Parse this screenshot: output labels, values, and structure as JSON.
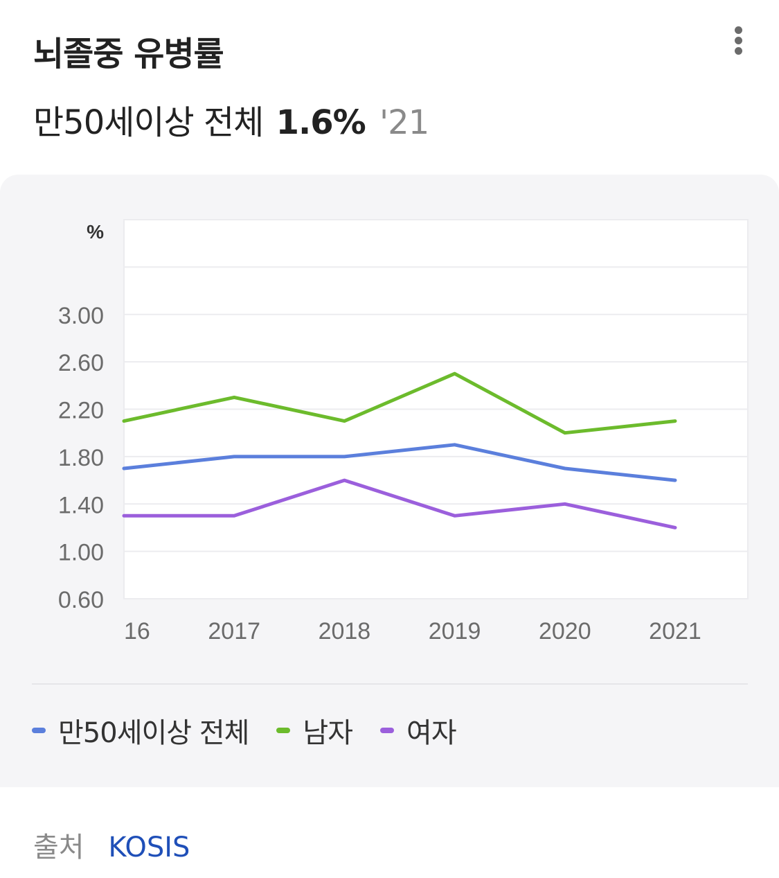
{
  "header": {
    "title": "뇌졸중 유병률",
    "subtitle_label": "만50세이상 전체",
    "subtitle_value": "1.6%",
    "subtitle_year": "'21"
  },
  "icons": {
    "more": "more-vertical-icon"
  },
  "source": {
    "label": "출처",
    "link": "KOSIS"
  },
  "colors": {
    "total": "#5b7fdc",
    "male": "#6cbb2c",
    "female": "#9b5fdc",
    "link": "#1f4fb8",
    "panel": "#f5f5f7"
  },
  "chart_data": {
    "type": "line",
    "unit_label": "%",
    "categories": [
      "16",
      "2017",
      "2018",
      "2019",
      "2020",
      "2021"
    ],
    "y_ticks": [
      "0.60",
      "1.00",
      "1.40",
      "1.80",
      "2.20",
      "2.60",
      "3.00"
    ],
    "ylim": [
      0.6,
      3.8
    ],
    "grid": true,
    "legend_position": "bottom",
    "series": [
      {
        "name": "만50세이상 전체",
        "color": "#5b7fdc",
        "values": [
          1.7,
          1.8,
          1.8,
          1.9,
          1.7,
          1.6
        ]
      },
      {
        "name": "남자",
        "color": "#6cbb2c",
        "values": [
          2.1,
          2.3,
          2.1,
          2.5,
          2.0,
          2.1
        ]
      },
      {
        "name": "여자",
        "color": "#9b5fdc",
        "values": [
          1.3,
          1.3,
          1.6,
          1.3,
          1.4,
          1.2
        ]
      }
    ]
  }
}
